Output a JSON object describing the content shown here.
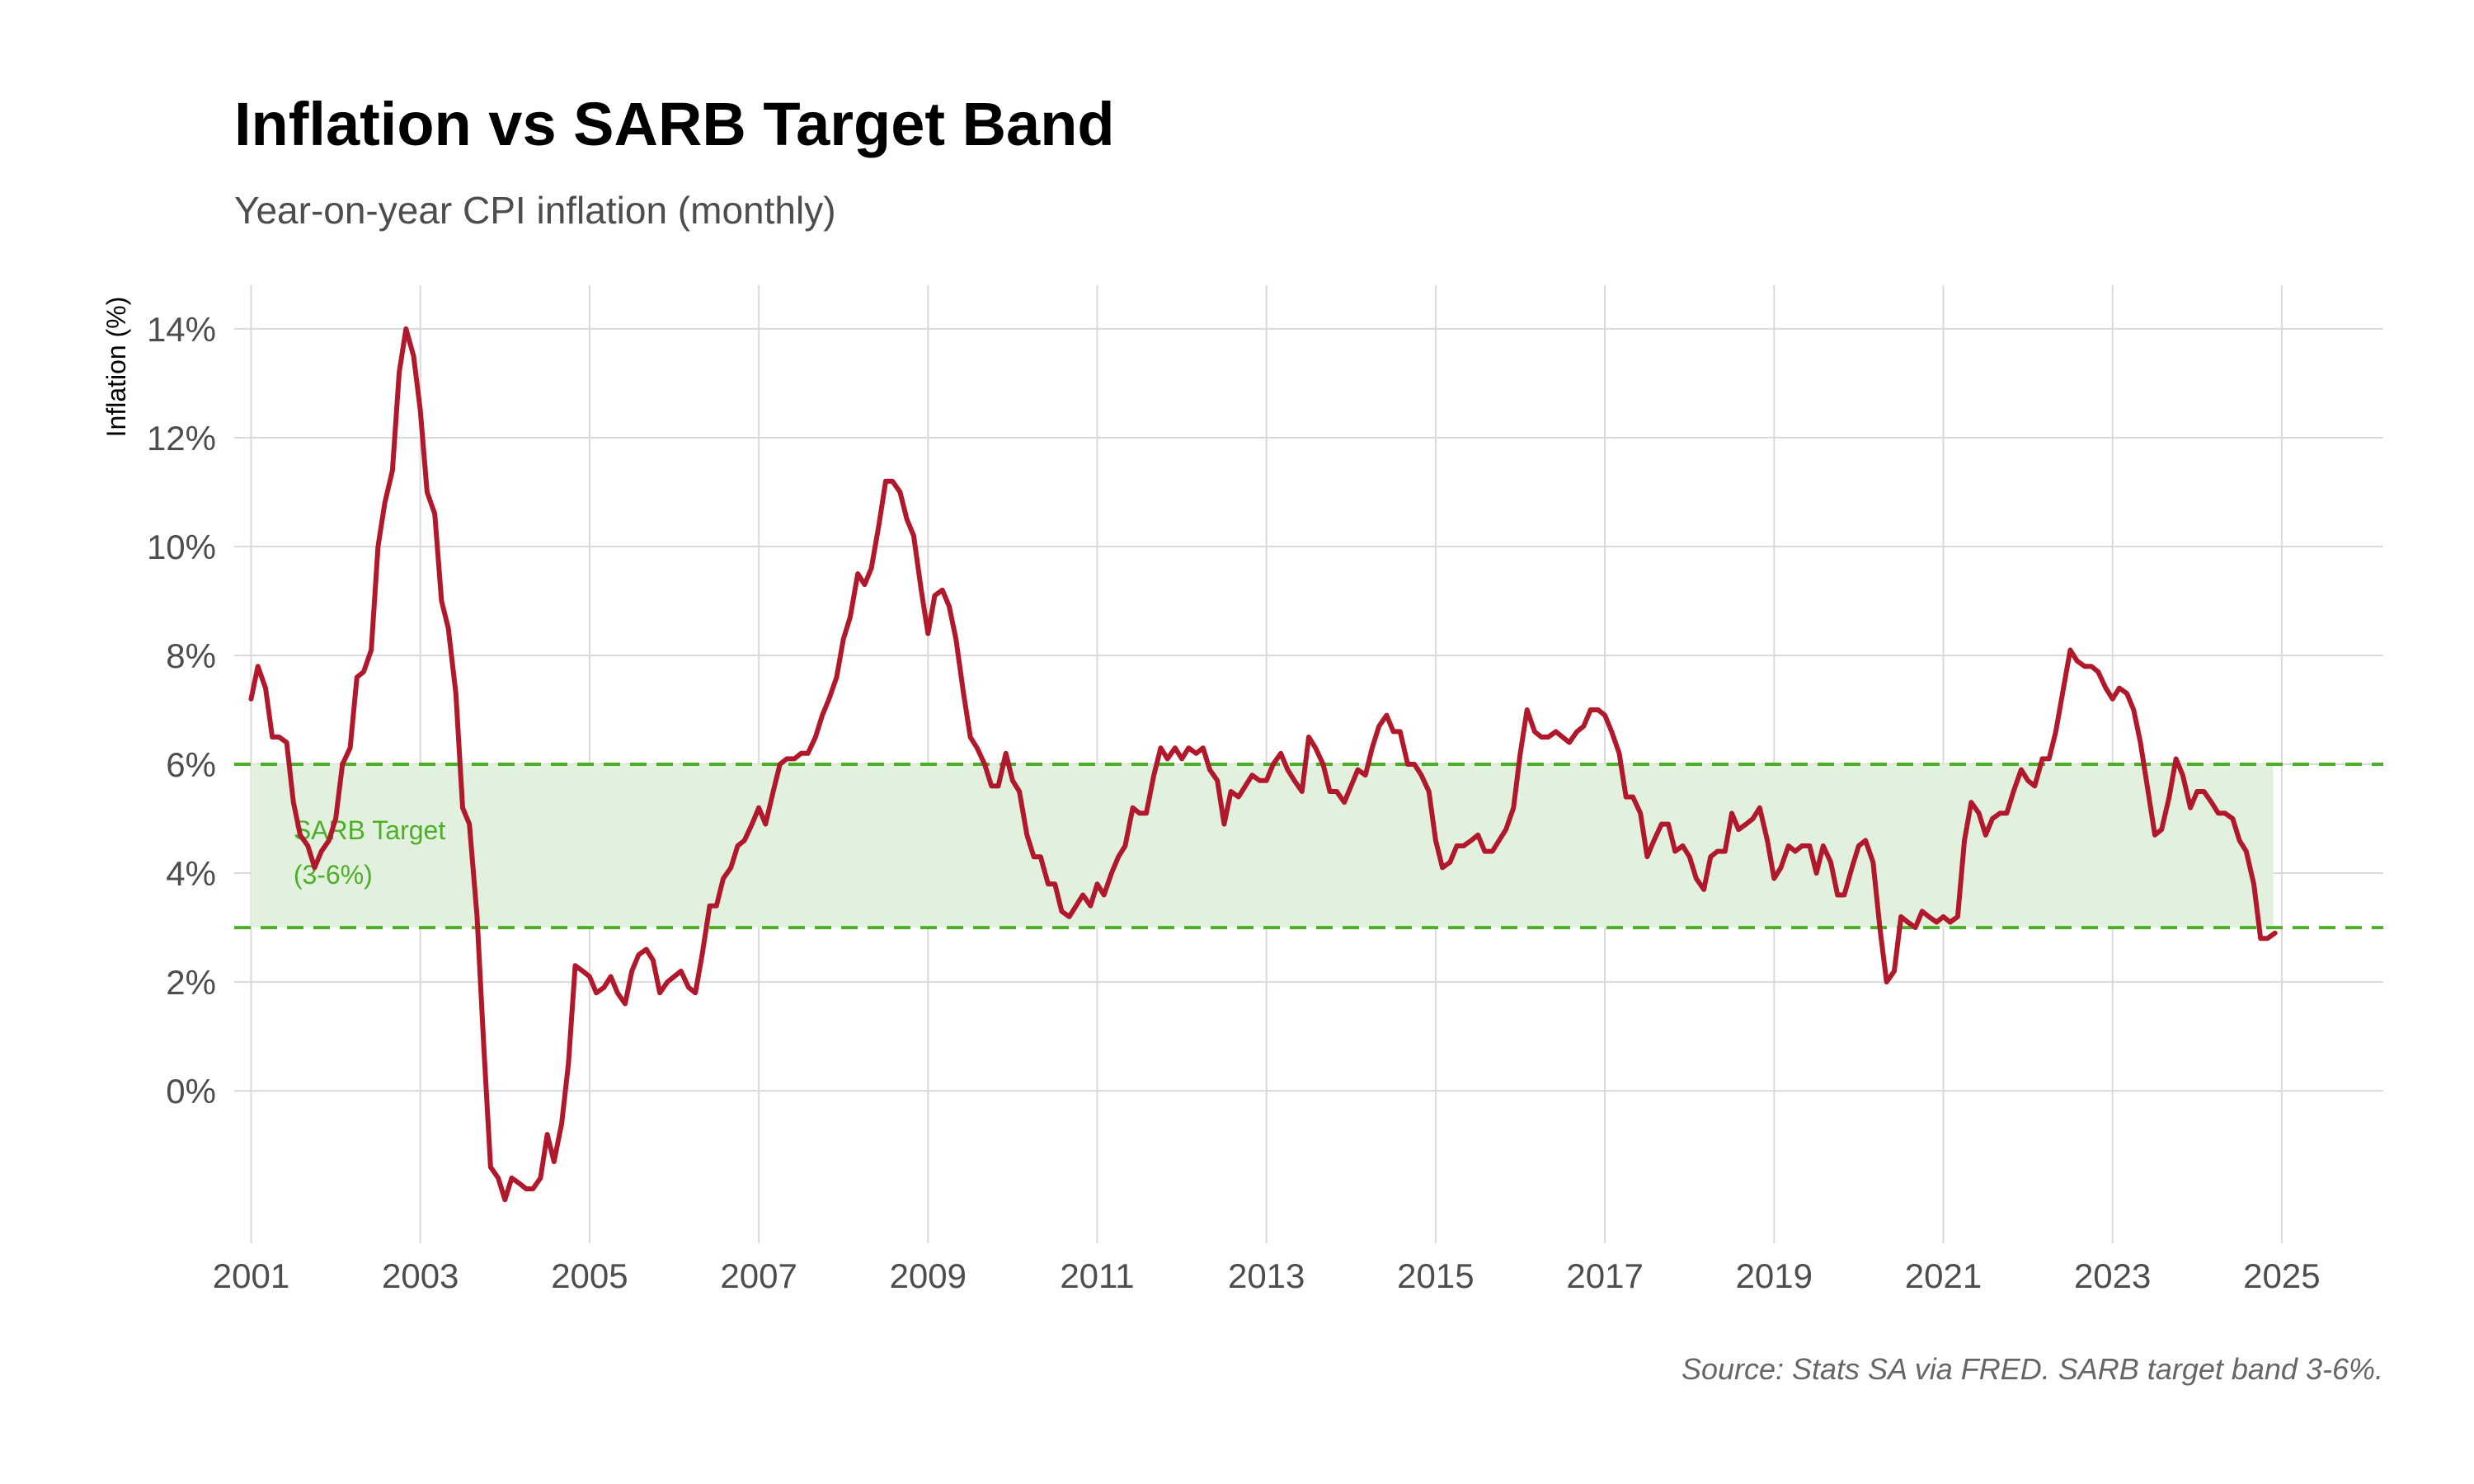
{
  "title": "Inflation vs SARB Target Band",
  "subtitle": "Year-on-year CPI inflation (monthly)",
  "caption": "Source: Stats SA via FRED. SARB target band 3-6%.",
  "chart_data": {
    "type": "line",
    "title": "Inflation vs SARB Target Band",
    "subtitle": "Year-on-year CPI inflation (monthly)",
    "xlabel": "",
    "ylabel": "Inflation (%)",
    "xlim": [
      2000.8,
      2026.2
    ],
    "ylim": [
      -2.8,
      14.8
    ],
    "x_ticks": [
      2001,
      2003,
      2005,
      2007,
      2009,
      2011,
      2013,
      2015,
      2017,
      2019,
      2021,
      2023,
      2025
    ],
    "y_ticks": [
      0,
      2,
      4,
      6,
      8,
      10,
      12,
      14
    ],
    "y_tick_labels": [
      "0%",
      "2%",
      "4%",
      "6%",
      "8%",
      "10%",
      "12%",
      "14%"
    ],
    "grid": true,
    "colors": {
      "line": "#b2182b",
      "band_fill": "#e2f1de",
      "band_lines": "#4daf29",
      "grid": "#d9d9d9"
    },
    "target_band": {
      "lower": 3,
      "upper": 6,
      "x_start": 2001.0,
      "x_end": 2024.9,
      "label_line1": "SARB Target",
      "label_line2": "(3-6%)",
      "label_x": 2001.5,
      "label_y": 4.8
    },
    "series": [
      {
        "x": [
          2001.0,
          2001.08,
          2001.17,
          2001.25,
          2001.33,
          2001.42,
          2001.5,
          2001.58,
          2001.67,
          2001.75,
          2001.83,
          2001.92,
          2002.0,
          2002.08,
          2002.17,
          2002.25,
          2002.33,
          2002.42,
          2002.5,
          2002.58,
          2002.67,
          2002.75,
          2002.83,
          2002.92,
          2003.0,
          2003.08,
          2003.17,
          2003.25,
          2003.33,
          2003.42,
          2003.5,
          2003.58,
          2003.67,
          2003.75,
          2003.83,
          2003.92,
          2004.0,
          2004.08,
          2004.17,
          2004.25,
          2004.33,
          2004.42,
          2004.5,
          2004.58,
          2004.67,
          2004.75,
          2004.83,
          2004.92,
          2005.0,
          2005.08,
          2005.17,
          2005.25,
          2005.33,
          2005.42,
          2005.5,
          2005.58,
          2005.67,
          2005.75,
          2005.83,
          2005.92,
          2006.0,
          2006.08,
          2006.17,
          2006.25,
          2006.33,
          2006.42,
          2006.5,
          2006.58,
          2006.67,
          2006.75,
          2006.83,
          2006.92,
          2007.0,
          2007.08,
          2007.17,
          2007.25,
          2007.33,
          2007.42,
          2007.5,
          2007.58,
          2007.67,
          2007.75,
          2007.83,
          2007.92,
          2008.0,
          2008.08,
          2008.17,
          2008.25,
          2008.33,
          2008.42,
          2008.5,
          2008.58,
          2008.67,
          2008.75,
          2008.83,
          2008.92,
          2009.0,
          2009.08,
          2009.17,
          2009.25,
          2009.33,
          2009.42,
          2009.5,
          2009.58,
          2009.67,
          2009.75,
          2009.83,
          2009.92,
          2010.0,
          2010.08,
          2010.17,
          2010.25,
          2010.33,
          2010.42,
          2010.5,
          2010.58,
          2010.67,
          2010.75,
          2010.83,
          2010.92,
          2011.0,
          2011.08,
          2011.17,
          2011.25,
          2011.33,
          2011.42,
          2011.5,
          2011.58,
          2011.67,
          2011.75,
          2011.83,
          2011.92,
          2012.0,
          2012.08,
          2012.17,
          2012.25,
          2012.33,
          2012.42,
          2012.5,
          2012.58,
          2012.67,
          2012.75,
          2012.83,
          2012.92,
          2013.0,
          2013.08,
          2013.17,
          2013.25,
          2013.33,
          2013.42,
          2013.5,
          2013.58,
          2013.67,
          2013.75,
          2013.83,
          2013.92,
          2014.0,
          2014.08,
          2014.17,
          2014.25,
          2014.33,
          2014.42,
          2014.5,
          2014.58,
          2014.67,
          2014.75,
          2014.83,
          2014.92,
          2015.0,
          2015.08,
          2015.17,
          2015.25,
          2015.33,
          2015.42,
          2015.5,
          2015.58,
          2015.67,
          2015.75,
          2015.83,
          2015.92,
          2016.0,
          2016.08,
          2016.17,
          2016.25,
          2016.33,
          2016.42,
          2016.5,
          2016.58,
          2016.67,
          2016.75,
          2016.83,
          2016.92,
          2017.0,
          2017.08,
          2017.17,
          2017.25,
          2017.33,
          2017.42,
          2017.5,
          2017.58,
          2017.67,
          2017.75,
          2017.83,
          2017.92,
          2018.0,
          2018.08,
          2018.17,
          2018.25,
          2018.33,
          2018.42,
          2018.5,
          2018.58,
          2018.67,
          2018.75,
          2018.83,
          2018.92,
          2019.0,
          2019.08,
          2019.17,
          2019.25,
          2019.33,
          2019.42,
          2019.5,
          2019.58,
          2019.67,
          2019.75,
          2019.83,
          2019.92,
          2020.0,
          2020.08,
          2020.17,
          2020.25,
          2020.33,
          2020.42,
          2020.5,
          2020.58,
          2020.67,
          2020.75,
          2020.83,
          2020.92,
          2021.0,
          2021.08,
          2021.17,
          2021.25,
          2021.33,
          2021.42,
          2021.5,
          2021.58,
          2021.67,
          2021.75,
          2021.83,
          2021.92,
          2022.0,
          2022.08,
          2022.17,
          2022.25,
          2022.33,
          2022.42,
          2022.5,
          2022.58,
          2022.67,
          2022.75,
          2022.83,
          2022.92,
          2023.0,
          2023.08,
          2023.17,
          2023.25,
          2023.33,
          2023.42,
          2023.5,
          2023.58,
          2023.67,
          2023.75,
          2023.83,
          2023.92,
          2024.0,
          2024.08,
          2024.17,
          2024.25,
          2024.33,
          2024.42,
          2024.5,
          2024.58,
          2024.67,
          2024.75,
          2024.83,
          2024.92
        ],
        "y": [
          7.2,
          7.8,
          7.4,
          6.5,
          6.5,
          6.4,
          5.3,
          4.7,
          4.5,
          4.1,
          4.4,
          4.6,
          5.0,
          6.0,
          6.3,
          7.6,
          7.7,
          8.1,
          10.0,
          10.8,
          11.4,
          13.2,
          14.0,
          13.5,
          12.5,
          11.0,
          10.6,
          9.0,
          8.5,
          7.3,
          5.2,
          4.9,
          3.2,
          0.8,
          -1.4,
          -1.6,
          -2.0,
          -1.6,
          -1.7,
          -1.8,
          -1.8,
          -1.6,
          -0.8,
          -1.3,
          -0.6,
          0.5,
          2.3,
          2.2,
          2.1,
          1.8,
          1.9,
          2.1,
          1.8,
          1.6,
          2.2,
          2.5,
          2.6,
          2.4,
          1.8,
          2.0,
          2.1,
          2.2,
          1.9,
          1.8,
          2.5,
          3.4,
          3.4,
          3.9,
          4.1,
          4.5,
          4.6,
          4.9,
          5.2,
          4.9,
          5.5,
          6.0,
          6.1,
          6.1,
          6.2,
          6.2,
          6.5,
          6.9,
          7.2,
          7.6,
          8.3,
          8.7,
          9.5,
          9.3,
          9.6,
          10.4,
          11.2,
          11.2,
          11.0,
          10.5,
          10.2,
          9.2,
          8.4,
          9.1,
          9.2,
          8.9,
          8.3,
          7.3,
          6.5,
          6.3,
          6.0,
          5.6,
          5.6,
          6.2,
          5.7,
          5.5,
          4.7,
          4.3,
          4.3,
          3.8,
          3.8,
          3.3,
          3.2,
          3.4,
          3.6,
          3.4,
          3.8,
          3.6,
          4.0,
          4.3,
          4.5,
          5.2,
          5.1,
          5.1,
          5.8,
          6.3,
          6.1,
          6.3,
          6.1,
          6.3,
          6.2,
          6.3,
          5.9,
          5.7,
          4.9,
          5.5,
          5.4,
          5.6,
          5.8,
          5.7,
          5.7,
          6.0,
          6.2,
          5.9,
          5.7,
          5.5,
          6.5,
          6.3,
          6.0,
          5.5,
          5.5,
          5.3,
          5.6,
          5.9,
          5.8,
          6.3,
          6.7,
          6.9,
          6.6,
          6.6,
          6.0,
          6.0,
          5.8,
          5.5,
          4.6,
          4.1,
          4.2,
          4.5,
          4.5,
          4.6,
          4.7,
          4.4,
          4.4,
          4.6,
          4.8,
          5.2,
          6.2,
          7.0,
          6.6,
          6.5,
          6.5,
          6.6,
          6.5,
          6.4,
          6.6,
          6.7,
          7.0,
          7.0,
          6.9,
          6.6,
          6.2,
          5.4,
          5.4,
          5.1,
          4.3,
          4.6,
          4.9,
          4.9,
          4.4,
          4.5,
          4.3,
          3.9,
          3.7,
          4.3,
          4.4,
          4.4,
          5.1,
          4.8,
          4.9,
          5.0,
          5.2,
          4.6,
          3.9,
          4.1,
          4.5,
          4.4,
          4.5,
          4.5,
          4.0,
          4.5,
          4.2,
          3.6,
          3.6,
          4.1,
          4.5,
          4.6,
          4.2,
          3.0,
          2.0,
          2.2,
          3.2,
          3.1,
          3.0,
          3.3,
          3.2,
          3.1,
          3.2,
          3.1,
          3.2,
          4.6,
          5.3,
          5.1,
          4.7,
          5.0,
          5.1,
          5.1,
          5.5,
          5.9,
          5.7,
          5.6,
          6.1,
          6.1,
          6.6,
          7.4,
          8.1,
          7.9,
          7.8,
          7.8,
          7.7,
          7.4,
          7.2,
          7.4,
          7.3,
          7.0,
          6.4,
          5.5,
          4.7,
          4.8,
          5.4,
          6.1,
          5.8,
          5.2,
          5.5,
          5.5,
          5.3,
          5.1,
          5.1,
          5.0,
          4.6,
          4.4,
          3.8,
          2.8,
          2.8,
          2.9
        ]
      }
    ]
  }
}
